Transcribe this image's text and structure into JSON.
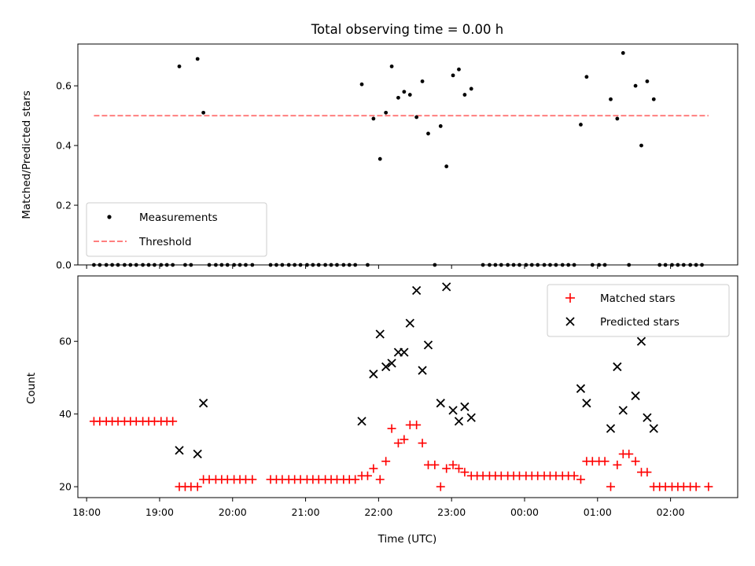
{
  "chart_data": [
    {
      "type": "scatter",
      "title": "Total observing time = 0.00 h",
      "ylabel": "Matched/Predicted stars",
      "xlabel": "",
      "xlim": [
        17.88,
        26.92
      ],
      "ylim": [
        0,
        0.74
      ],
      "yticks": [
        0.0,
        0.2,
        0.4,
        0.6
      ],
      "ytick_labels": [
        "0.0",
        "0.2",
        "0.4",
        "0.6"
      ],
      "legend_position": "lower-left",
      "series": [
        {
          "name": "Measurements",
          "kind": "points",
          "color": "#000000",
          "points": [
            [
              18.1,
              0
            ],
            [
              18.18,
              0
            ],
            [
              18.27,
              0
            ],
            [
              18.35,
              0
            ],
            [
              18.43,
              0
            ],
            [
              18.52,
              0
            ],
            [
              18.6,
              0
            ],
            [
              18.68,
              0
            ],
            [
              18.77,
              0
            ],
            [
              18.85,
              0
            ],
            [
              18.93,
              0
            ],
            [
              19.02,
              0
            ],
            [
              19.1,
              0
            ],
            [
              19.18,
              0
            ],
            [
              19.27,
              0.665
            ],
            [
              19.35,
              0
            ],
            [
              19.43,
              0
            ],
            [
              19.52,
              0.69
            ],
            [
              19.6,
              0.51
            ],
            [
              19.68,
              0
            ],
            [
              19.77,
              0
            ],
            [
              19.85,
              0
            ],
            [
              19.93,
              0
            ],
            [
              20.02,
              0
            ],
            [
              20.1,
              0
            ],
            [
              20.18,
              0
            ],
            [
              20.27,
              0
            ],
            [
              20.52,
              0
            ],
            [
              20.6,
              0
            ],
            [
              20.68,
              0
            ],
            [
              20.77,
              0
            ],
            [
              20.85,
              0
            ],
            [
              20.93,
              0
            ],
            [
              21.02,
              0
            ],
            [
              21.1,
              0
            ],
            [
              21.18,
              0
            ],
            [
              21.27,
              0
            ],
            [
              21.35,
              0
            ],
            [
              21.43,
              0
            ],
            [
              21.52,
              0
            ],
            [
              21.6,
              0
            ],
            [
              21.68,
              0
            ],
            [
              21.77,
              0.605
            ],
            [
              21.85,
              0
            ],
            [
              21.93,
              0.49
            ],
            [
              22.02,
              0.355
            ],
            [
              22.1,
              0.51
            ],
            [
              22.18,
              0.665
            ],
            [
              22.27,
              0.56
            ],
            [
              22.35,
              0.58
            ],
            [
              22.43,
              0.57
            ],
            [
              22.52,
              0.495
            ],
            [
              22.6,
              0.615
            ],
            [
              22.68,
              0.44
            ],
            [
              22.77,
              0
            ],
            [
              22.85,
              0.465
            ],
            [
              22.93,
              0.33
            ],
            [
              23.02,
              0.635
            ],
            [
              23.1,
              0.655
            ],
            [
              23.18,
              0.57
            ],
            [
              23.27,
              0.59
            ],
            [
              23.43,
              0
            ],
            [
              23.52,
              0
            ],
            [
              23.6,
              0
            ],
            [
              23.68,
              0
            ],
            [
              23.77,
              0
            ],
            [
              23.85,
              0
            ],
            [
              23.93,
              0
            ],
            [
              24.02,
              0
            ],
            [
              24.1,
              0
            ],
            [
              24.18,
              0
            ],
            [
              24.27,
              0
            ],
            [
              24.35,
              0
            ],
            [
              24.43,
              0
            ],
            [
              24.52,
              0
            ],
            [
              24.6,
              0
            ],
            [
              24.68,
              0
            ],
            [
              24.77,
              0.47
            ],
            [
              24.85,
              0.63
            ],
            [
              24.93,
              0
            ],
            [
              25.02,
              0
            ],
            [
              25.1,
              0
            ],
            [
              25.18,
              0.555
            ],
            [
              25.27,
              0.49
            ],
            [
              25.35,
              0.71
            ],
            [
              25.43,
              0
            ],
            [
              25.52,
              0.6
            ],
            [
              25.6,
              0.4
            ],
            [
              25.68,
              0.615
            ],
            [
              25.77,
              0.555
            ],
            [
              25.85,
              0
            ],
            [
              25.93,
              0
            ],
            [
              26.02,
              0
            ],
            [
              26.1,
              0
            ],
            [
              26.18,
              0
            ],
            [
              26.27,
              0
            ],
            [
              26.35,
              0
            ],
            [
              26.43,
              0
            ]
          ]
        },
        {
          "name": "Threshold",
          "kind": "dashed-line",
          "color": "#ff7f7f",
          "x": [
            18.1,
            26.52
          ],
          "y": [
            0.5,
            0.5
          ]
        }
      ]
    },
    {
      "type": "scatter",
      "title": "",
      "xlabel": "Time (UTC)",
      "ylabel": "Count",
      "xlim": [
        17.88,
        26.92
      ],
      "ylim": [
        17,
        78
      ],
      "xticks": [
        18,
        19,
        20,
        21,
        22,
        23,
        24,
        25,
        26
      ],
      "xtick_labels": [
        "18:00",
        "19:00",
        "20:00",
        "21:00",
        "22:00",
        "23:00",
        "00:00",
        "01:00",
        "02:00"
      ],
      "yticks": [
        20,
        40,
        60
      ],
      "ytick_labels": [
        "20",
        "40",
        "60"
      ],
      "legend_position": "upper-right",
      "series": [
        {
          "name": "Matched stars",
          "marker": "plus",
          "color": "#ff0000",
          "points": [
            [
              18.1,
              38
            ],
            [
              18.18,
              38
            ],
            [
              18.27,
              38
            ],
            [
              18.35,
              38
            ],
            [
              18.43,
              38
            ],
            [
              18.52,
              38
            ],
            [
              18.6,
              38
            ],
            [
              18.68,
              38
            ],
            [
              18.77,
              38
            ],
            [
              18.85,
              38
            ],
            [
              18.93,
              38
            ],
            [
              19.02,
              38
            ],
            [
              19.1,
              38
            ],
            [
              19.18,
              38
            ],
            [
              19.27,
              20
            ],
            [
              19.35,
              20
            ],
            [
              19.43,
              20
            ],
            [
              19.52,
              20
            ],
            [
              19.6,
              22
            ],
            [
              19.68,
              22
            ],
            [
              19.77,
              22
            ],
            [
              19.85,
              22
            ],
            [
              19.93,
              22
            ],
            [
              20.02,
              22
            ],
            [
              20.1,
              22
            ],
            [
              20.18,
              22
            ],
            [
              20.27,
              22
            ],
            [
              20.52,
              22
            ],
            [
              20.6,
              22
            ],
            [
              20.68,
              22
            ],
            [
              20.77,
              22
            ],
            [
              20.85,
              22
            ],
            [
              20.93,
              22
            ],
            [
              21.02,
              22
            ],
            [
              21.1,
              22
            ],
            [
              21.18,
              22
            ],
            [
              21.27,
              22
            ],
            [
              21.35,
              22
            ],
            [
              21.43,
              22
            ],
            [
              21.52,
              22
            ],
            [
              21.6,
              22
            ],
            [
              21.68,
              22
            ],
            [
              21.77,
              23
            ],
            [
              21.85,
              23
            ],
            [
              21.93,
              25
            ],
            [
              22.02,
              22
            ],
            [
              22.1,
              27
            ],
            [
              22.18,
              36
            ],
            [
              22.27,
              32
            ],
            [
              22.35,
              33
            ],
            [
              22.43,
              37
            ],
            [
              22.52,
              37
            ],
            [
              22.6,
              32
            ],
            [
              22.68,
              26
            ],
            [
              22.77,
              26
            ],
            [
              22.85,
              20
            ],
            [
              22.93,
              25
            ],
            [
              23.02,
              26
            ],
            [
              23.1,
              25
            ],
            [
              23.18,
              24
            ],
            [
              23.27,
              23
            ],
            [
              23.35,
              23
            ],
            [
              23.43,
              23
            ],
            [
              23.52,
              23
            ],
            [
              23.6,
              23
            ],
            [
              23.68,
              23
            ],
            [
              23.77,
              23
            ],
            [
              23.85,
              23
            ],
            [
              23.93,
              23
            ],
            [
              24.02,
              23
            ],
            [
              24.1,
              23
            ],
            [
              24.18,
              23
            ],
            [
              24.27,
              23
            ],
            [
              24.35,
              23
            ],
            [
              24.43,
              23
            ],
            [
              24.52,
              23
            ],
            [
              24.6,
              23
            ],
            [
              24.68,
              23
            ],
            [
              24.77,
              22
            ],
            [
              24.85,
              27
            ],
            [
              24.93,
              27
            ],
            [
              25.02,
              27
            ],
            [
              25.1,
              27
            ],
            [
              25.18,
              20
            ],
            [
              25.27,
              26
            ],
            [
              25.35,
              29
            ],
            [
              25.43,
              29
            ],
            [
              25.52,
              27
            ],
            [
              25.6,
              24
            ],
            [
              25.68,
              24
            ],
            [
              25.77,
              20
            ],
            [
              25.85,
              20
            ],
            [
              25.93,
              20
            ],
            [
              26.02,
              20
            ],
            [
              26.1,
              20
            ],
            [
              26.18,
              20
            ],
            [
              26.27,
              20
            ],
            [
              26.35,
              20
            ],
            [
              26.52,
              20
            ]
          ]
        },
        {
          "name": "Predicted stars",
          "marker": "x",
          "color": "#000000",
          "points": [
            [
              19.27,
              30
            ],
            [
              19.52,
              29
            ],
            [
              19.6,
              43
            ],
            [
              21.77,
              38
            ],
            [
              21.93,
              51
            ],
            [
              22.02,
              62
            ],
            [
              22.1,
              53
            ],
            [
              22.18,
              54
            ],
            [
              22.27,
              57
            ],
            [
              22.35,
              57
            ],
            [
              22.43,
              65
            ],
            [
              22.52,
              74
            ],
            [
              22.6,
              52
            ],
            [
              22.68,
              59
            ],
            [
              22.85,
              43
            ],
            [
              22.93,
              75
            ],
            [
              23.02,
              41
            ],
            [
              23.1,
              38
            ],
            [
              23.18,
              42
            ],
            [
              23.27,
              39
            ],
            [
              24.77,
              47
            ],
            [
              24.85,
              43
            ],
            [
              25.18,
              36
            ],
            [
              25.27,
              53
            ],
            [
              25.35,
              41
            ],
            [
              25.52,
              45
            ],
            [
              25.6,
              60
            ],
            [
              25.68,
              39
            ],
            [
              25.77,
              36
            ]
          ]
        }
      ]
    }
  ]
}
